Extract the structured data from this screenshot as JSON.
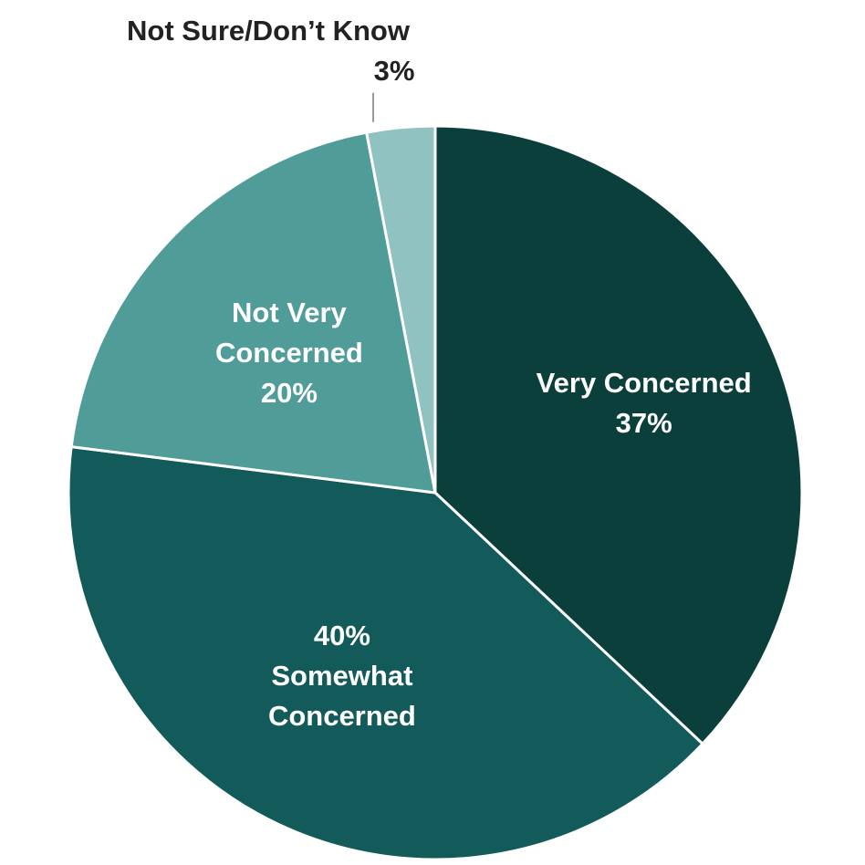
{
  "chart_data": {
    "type": "pie",
    "slices": [
      {
        "name": "Very Concerned",
        "value": 37,
        "value_label": "37%",
        "label_lines": [
          "Very Concerned",
          "37%"
        ],
        "color": "#0b3f3c",
        "label_inside": true
      },
      {
        "name": "Somewhat Concerned",
        "value": 40,
        "value_label": "40%",
        "label_lines": [
          "40%",
          "Somewhat",
          "Concerned"
        ],
        "color": "#135b5a",
        "label_inside": true
      },
      {
        "name": "Not Very Concerned",
        "value": 20,
        "value_label": "20%",
        "label_lines": [
          "Not Very",
          "Concerned",
          "20%"
        ],
        "color": "#4f9c99",
        "label_inside": true
      },
      {
        "name": "Not Sure/Don’t Know",
        "value": 3,
        "value_label": "3%",
        "label_lines": [
          "Not Sure/Don’t Know",
          "3%"
        ],
        "color": "#8fc2c0",
        "label_inside": false
      }
    ],
    "start_angle": "12 o'clock",
    "direction": "clockwise",
    "separator_color": "#ffffff"
  }
}
